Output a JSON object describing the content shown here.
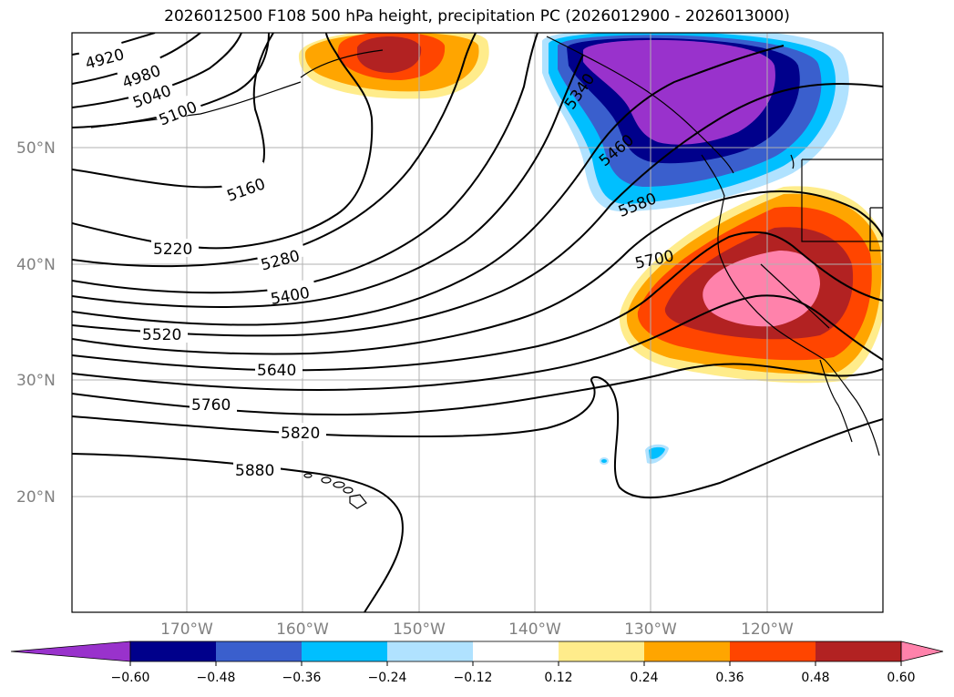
{
  "title": "2026012500 F108 500 hPa height, precipitation PC (2026012900 - 2026013000)",
  "lat_labels": [
    "50°N",
    "40°N",
    "30°N",
    "20°N"
  ],
  "lon_labels": [
    "170°W",
    "160°W",
    "150°W",
    "140°W",
    "130°W",
    "120°W"
  ],
  "contour_labels": [
    "4920",
    "4980",
    "5040",
    "5100",
    "5160",
    "5220",
    "5280",
    "5400",
    "5520",
    "5640",
    "5760",
    "5820",
    "5880",
    "5460",
    "5580",
    "5700",
    "5340"
  ],
  "colorbar": {
    "ticks": [
      "−0.60",
      "−0.48",
      "−0.36",
      "−0.24",
      "−0.12",
      "0.12",
      "0.24",
      "0.36",
      "0.48",
      "0.60"
    ],
    "colors": [
      "#9932cc",
      "#00008b",
      "#3a5fcd",
      "#00bfff",
      "#b0e2ff",
      "#ffffff",
      "#ffec8b",
      "#ffa500",
      "#ff4500",
      "#b22222",
      "#ff82ab"
    ]
  },
  "colors": {
    "purple": "#9932cc",
    "navy": "#00008b",
    "blue": "#3a5fcd",
    "sky": "#00bfff",
    "lightblue": "#b0e2ff",
    "yellow": "#ffec8b",
    "orange": "#ffa500",
    "orangered": "#ff4500",
    "firebrick": "#b22222",
    "pink": "#ff82ab"
  }
}
